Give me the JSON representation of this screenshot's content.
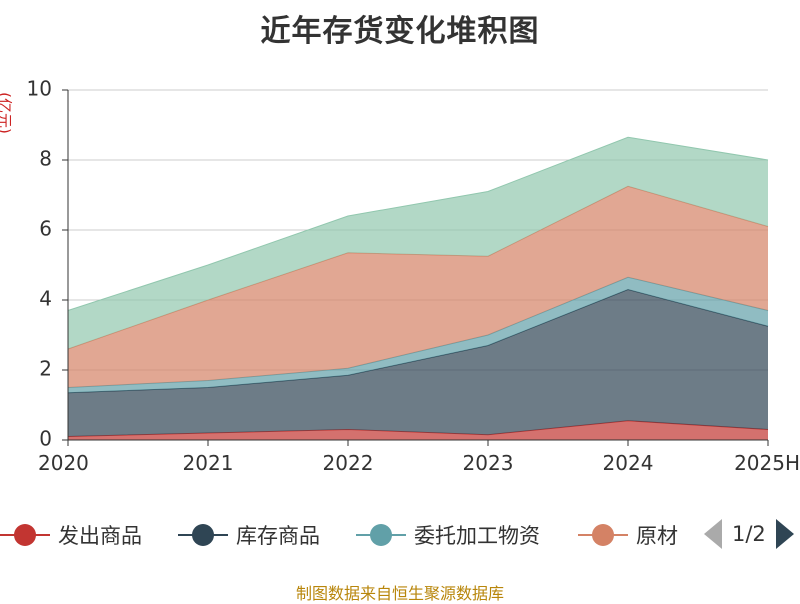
{
  "chart_data": {
    "type": "area",
    "stacked": true,
    "title": "近年存货变化堆积图",
    "unit_label": "(亿元)",
    "categories": [
      "2020",
      "2021",
      "2022",
      "2023",
      "2024",
      "2025H"
    ],
    "ylim": [
      0,
      10
    ],
    "yticks": [
      0,
      2,
      4,
      6,
      8,
      10
    ],
    "grid": true,
    "series": [
      {
        "name": "发出商品",
        "color": "#c23531",
        "values": [
          0.1,
          0.2,
          0.3,
          0.15,
          0.55,
          0.3
        ]
      },
      {
        "name": "库存商品",
        "color": "#2f4554",
        "values": [
          1.25,
          1.3,
          1.55,
          2.55,
          3.75,
          2.95
        ]
      },
      {
        "name": "委托加工物资",
        "color": "#61a0a8",
        "values": [
          0.15,
          0.2,
          0.2,
          0.3,
          0.35,
          0.45
        ]
      },
      {
        "name": "原材料",
        "color": "#d48265",
        "values": [
          1.1,
          2.3,
          3.3,
          2.25,
          2.6,
          2.4
        ]
      },
      {
        "name": "",
        "color": "#91c7ae",
        "values": [
          1.1,
          1.0,
          1.05,
          1.85,
          1.4,
          1.9
        ]
      }
    ]
  },
  "legend": {
    "items": [
      {
        "label": "发出商品",
        "color": "#c23531"
      },
      {
        "label": "库存商品",
        "color": "#2f4554"
      },
      {
        "label": "委托加工物资",
        "color": "#61a0a8"
      },
      {
        "label": "原材",
        "color": "#d48265"
      }
    ],
    "page_text": "1/2"
  },
  "footer": {
    "source": "制图数据来自恒生聚源数据库"
  }
}
